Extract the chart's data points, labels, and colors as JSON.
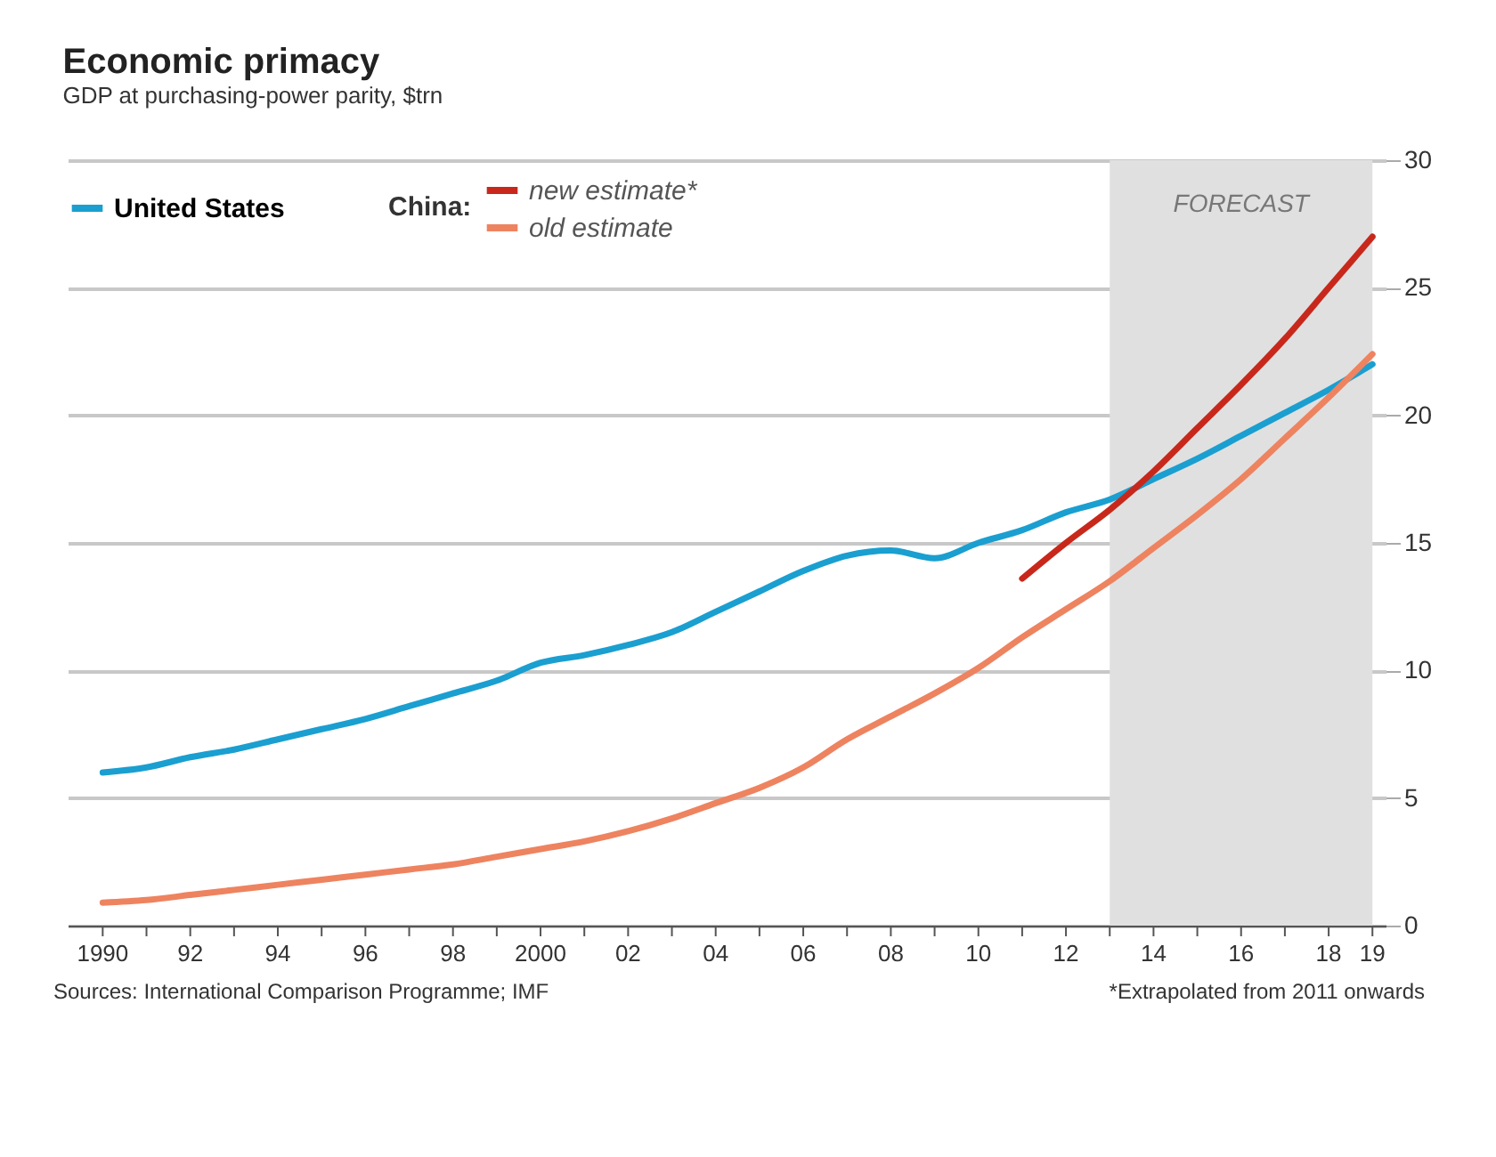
{
  "chart_data": {
    "type": "line",
    "title": "Economic primacy",
    "subtitle": "GDP at purchasing-power parity, $trn",
    "x": [
      1990,
      1991,
      1992,
      1993,
      1994,
      1995,
      1996,
      1997,
      1998,
      1999,
      2000,
      2001,
      2002,
      2003,
      2004,
      2005,
      2006,
      2007,
      2008,
      2009,
      2010,
      2011,
      2012,
      2013,
      2014,
      2015,
      2016,
      2017,
      2018,
      2019
    ],
    "series": [
      {
        "name": "United States",
        "color": "#1a9fd0",
        "values": [
          6.0,
          6.2,
          6.6,
          6.9,
          7.3,
          7.7,
          8.1,
          8.6,
          9.1,
          9.6,
          10.3,
          10.6,
          11.0,
          11.5,
          12.3,
          13.1,
          13.9,
          14.5,
          14.7,
          14.4,
          15.0,
          15.5,
          16.2,
          16.7,
          17.5,
          18.3,
          19.2,
          20.1,
          21.0,
          22.0
        ]
      },
      {
        "name": "new estimate*",
        "color": "#c8281b",
        "x": [
          2011,
          2012,
          2013,
          2014,
          2015,
          2016,
          2017,
          2018,
          2019
        ],
        "values": [
          13.6,
          15.0,
          16.3,
          17.8,
          19.5,
          21.2,
          23.0,
          25.0,
          27.0
        ]
      },
      {
        "name": "old estimate",
        "color": "#ee8360",
        "values": [
          0.9,
          1.0,
          1.2,
          1.4,
          1.6,
          1.8,
          2.0,
          2.2,
          2.4,
          2.7,
          3.0,
          3.3,
          3.7,
          4.2,
          4.8,
          5.4,
          6.2,
          7.3,
          8.2,
          9.1,
          10.1,
          11.3,
          12.4,
          13.5,
          14.8,
          16.1,
          17.5,
          19.1,
          20.7,
          22.4
        ]
      }
    ],
    "legend_title": "China:",
    "legend": "top left",
    "xlim": [
      1989.2,
      2019.3
    ],
    "xticks": [
      {
        "value": 1990,
        "label": "1990"
      },
      {
        "value": 1991,
        "label": null
      },
      {
        "value": 1992,
        "label": "92"
      },
      {
        "value": 1993,
        "label": null
      },
      {
        "value": 1994,
        "label": "94"
      },
      {
        "value": 1995,
        "label": null
      },
      {
        "value": 1996,
        "label": "96"
      },
      {
        "value": 1997,
        "label": null
      },
      {
        "value": 1998,
        "label": "98"
      },
      {
        "value": 1999,
        "label": null
      },
      {
        "value": 2000,
        "label": "2000"
      },
      {
        "value": 2001,
        "label": null
      },
      {
        "value": 2002,
        "label": "02"
      },
      {
        "value": 2003,
        "label": null
      },
      {
        "value": 2004,
        "label": "04"
      },
      {
        "value": 2005,
        "label": null
      },
      {
        "value": 2006,
        "label": "06"
      },
      {
        "value": 2007,
        "label": null
      },
      {
        "value": 2008,
        "label": "08"
      },
      {
        "value": 2009,
        "label": null
      },
      {
        "value": 2010,
        "label": "10"
      },
      {
        "value": 2011,
        "label": null
      },
      {
        "value": 2012,
        "label": "12"
      },
      {
        "value": 2013,
        "label": null
      },
      {
        "value": 2014,
        "label": "14"
      },
      {
        "value": 2015,
        "label": null
      },
      {
        "value": 2016,
        "label": "16"
      },
      {
        "value": 2017,
        "label": null
      },
      {
        "value": 2018,
        "label": "18"
      },
      {
        "value": 2019,
        "label": "19"
      }
    ],
    "ylim": [
      0,
      30
    ],
    "yticks": [
      0,
      5,
      10,
      15,
      20,
      25,
      30
    ],
    "grid": "y",
    "bands": [
      {
        "axis": "x",
        "from": 2013,
        "to": 2019,
        "label": "FORECAST",
        "color": "#e0e0e0"
      }
    ],
    "annotations": [
      "Sources: International Comparison Programme; IMF",
      "*Extrapolated from 2011 onwards"
    ]
  }
}
